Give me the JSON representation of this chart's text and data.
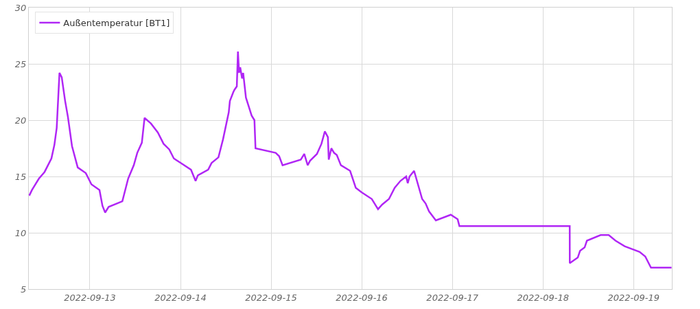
{
  "chart_data": {
    "type": "line",
    "legend": "top left",
    "grid": true,
    "marker": "none",
    "line_style": "solid",
    "xlim": [
      "2022-09-12T07:50",
      "2022-09-19T10:08"
    ],
    "ylim": [
      5,
      30
    ],
    "xticks": [
      "2022-09-13",
      "2022-09-14",
      "2022-09-15",
      "2022-09-16",
      "2022-09-17",
      "2022-09-18",
      "2022-09-19"
    ],
    "yticks": [
      5,
      10,
      15,
      20,
      25,
      30
    ],
    "x": [
      "2022-09-12T07:57",
      "2022-09-12T08:40",
      "2022-09-12T10:29",
      "2022-09-12T12:00",
      "2022-09-12T13:49",
      "2022-09-12T14:36",
      "2022-09-12T15:13",
      "2022-09-12T15:57",
      "2022-09-12T16:33",
      "2022-09-12T17:27",
      "2022-09-12T18:11",
      "2022-09-12T19:16",
      "2022-09-12T20:47",
      "2022-09-12T22:55",
      "2022-09-13T00:25",
      "2022-09-13T02:33",
      "2022-09-13T03:20",
      "2022-09-13T04:03",
      "2022-09-13T04:58",
      "2022-09-13T08:36",
      "2022-09-13T10:08",
      "2022-09-13T11:38",
      "2022-09-13T12:33",
      "2022-09-13T13:46",
      "2022-09-13T14:29",
      "2022-09-13T16:11",
      "2022-09-13T18:00",
      "2022-09-13T19:31",
      "2022-09-13T21:02",
      "2022-09-13T22:14",
      "2022-09-14T00:03",
      "2022-09-14T02:47",
      "2022-09-14T04:00",
      "2022-09-14T04:36",
      "2022-09-14T07:20",
      "2022-09-14T08:14",
      "2022-09-14T10:03",
      "2022-09-14T11:16",
      "2022-09-14T12:47",
      "2022-09-14T13:05",
      "2022-09-14T14:00",
      "2022-09-14T14:18",
      "2022-09-14T14:55",
      "2022-09-14T15:13",
      "2022-09-14T15:31",
      "2022-09-14T15:49",
      "2022-09-14T16:19",
      "2022-09-14T16:36",
      "2022-09-14T17:20",
      "2022-09-14T18:51",
      "2022-09-14T19:35",
      "2022-09-14T19:52",
      "2022-09-15T01:13",
      "2022-09-15T02:08",
      "2022-09-15T03:02",
      "2022-09-15T07:52",
      "2022-09-15T08:47",
      "2022-09-15T09:41",
      "2022-09-15T10:19",
      "2022-09-15T12:08",
      "2022-09-15T13:20",
      "2022-09-15T14:14",
      "2022-09-15T15:02",
      "2022-09-15T15:16",
      "2022-09-15T15:57",
      "2022-09-15T16:40",
      "2022-09-15T17:24",
      "2022-09-15T18:29",
      "2022-09-15T20:55",
      "2022-09-15T22:25",
      "2022-09-15T23:57",
      "2022-09-16T02:40",
      "2022-09-16T04:19",
      "2022-09-16T05:24",
      "2022-09-16T07:13",
      "2022-09-16T08:44",
      "2022-09-16T10:14",
      "2022-09-16T11:46",
      "2022-09-16T12:11",
      "2022-09-16T12:40",
      "2022-09-16T13:52",
      "2022-09-16T16:00",
      "2022-09-16T16:55",
      "2022-09-16T17:49",
      "2022-09-16T19:38",
      "2022-09-16T23:35",
      "2022-09-17T01:24",
      "2022-09-17T01:52",
      "2022-09-18T07:05",
      "2022-09-18T07:06",
      "2022-09-18T09:13",
      "2022-09-18T09:49",
      "2022-09-18T11:02",
      "2022-09-18T11:38",
      "2022-09-18T15:16",
      "2022-09-18T17:24",
      "2022-09-18T19:13",
      "2022-09-18T21:38",
      "2022-09-19T01:35",
      "2022-09-19T03:05",
      "2022-09-19T04:36",
      "2022-09-19T10:03"
    ],
    "series": [
      {
        "name": "Außentemperatur [BT1]",
        "color": "#b026f5",
        "values": [
          13.3,
          13.8,
          14.8,
          15.4,
          16.6,
          17.8,
          19.3,
          24.2,
          23.8,
          21.7,
          20.3,
          17.7,
          15.8,
          15.3,
          14.3,
          13.8,
          12.4,
          11.8,
          12.3,
          12.8,
          14.8,
          16.0,
          17.1,
          18.0,
          20.2,
          19.7,
          18.9,
          17.9,
          17.4,
          16.6,
          16.2,
          15.6,
          14.6,
          15.1,
          15.6,
          16.2,
          16.7,
          18.3,
          20.7,
          21.7,
          22.5,
          22.7,
          23.0,
          26.1,
          24.2,
          24.7,
          23.7,
          24.2,
          22.0,
          20.4,
          20.0,
          17.5,
          17.1,
          16.8,
          16.0,
          16.5,
          17.0,
          16.0,
          16.4,
          17.0,
          17.9,
          19.0,
          18.5,
          16.5,
          17.5,
          17.1,
          16.9,
          16.0,
          15.5,
          14.0,
          13.6,
          13.0,
          12.1,
          12.5,
          13.0,
          14.0,
          14.6,
          15.0,
          14.4,
          15.0,
          15.5,
          13.0,
          12.6,
          11.9,
          11.1,
          11.6,
          11.2,
          10.6,
          10.6,
          7.3,
          7.8,
          8.4,
          8.7,
          9.3,
          9.8,
          9.8,
          9.3,
          8.8,
          8.3,
          7.9,
          6.9,
          6.9
        ]
      }
    ]
  }
}
